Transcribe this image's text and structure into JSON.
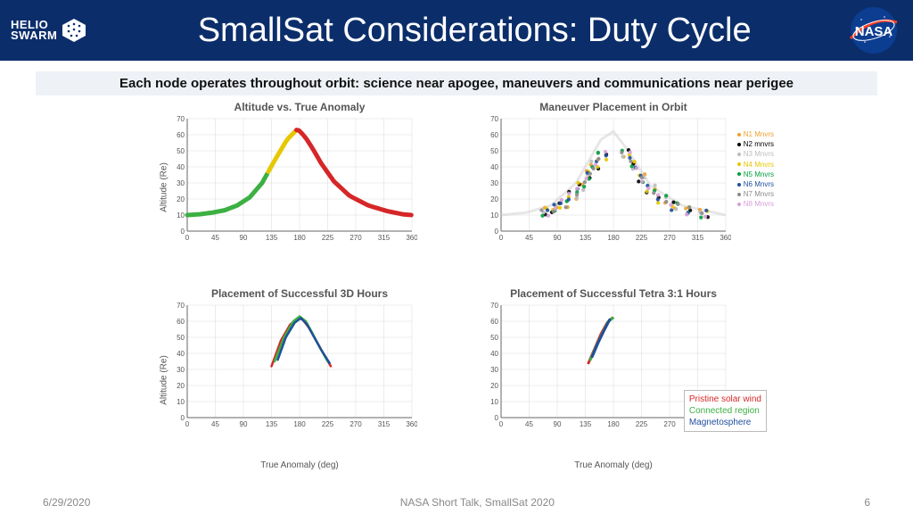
{
  "header": {
    "helio_line1": "HELIO",
    "helio_line2": "SWARM",
    "title": "SmallSat Considerations: Duty Cycle",
    "nasa_text": "NASA",
    "nasa_blue": "#0b3d91",
    "nasa_red": "#fc3d21"
  },
  "subtitle": "Each node operates throughout orbit: science near apogee, maneuvers and communications near perigee",
  "axis": {
    "x_ticks": [
      0,
      45,
      90,
      135,
      180,
      225,
      270,
      315,
      360
    ],
    "y_ticks": [
      0,
      10,
      20,
      30,
      40,
      50,
      60,
      70
    ],
    "ylim": [
      0,
      70
    ],
    "xlim": [
      0,
      360
    ],
    "ylabel": "Altitude (Re)",
    "xlabel": "True Anomaly (deg)",
    "grid_color": "#d9d9d9",
    "axis_color": "#666666",
    "tick_fontsize": 8
  },
  "charts": {
    "a": {
      "title": "Altitude vs. True Anomaly",
      "curve": [
        [
          0,
          10
        ],
        [
          20,
          10.5
        ],
        [
          40,
          11.5
        ],
        [
          60,
          13
        ],
        [
          80,
          16
        ],
        [
          100,
          21
        ],
        [
          120,
          30
        ],
        [
          140,
          44
        ],
        [
          160,
          57
        ],
        [
          175,
          63
        ],
        [
          180,
          62.5
        ],
        [
          190,
          58
        ],
        [
          200,
          52
        ],
        [
          215,
          42
        ],
        [
          235,
          31
        ],
        [
          260,
          22
        ],
        [
          290,
          16
        ],
        [
          320,
          12.5
        ],
        [
          345,
          10.5
        ],
        [
          360,
          10
        ]
      ],
      "color_breaks": [
        {
          "x_from": 0,
          "x_to": 130,
          "color": "#3cb043"
        },
        {
          "x_from": 130,
          "x_to": 175,
          "color": "#e6c700"
        },
        {
          "x_from": 175,
          "x_to": 360,
          "color": "#d62728"
        }
      ],
      "line_width": 5,
      "show_ylabel": true,
      "show_xlabel": false
    },
    "b": {
      "title": "Maneuver Placement in Orbit",
      "scatter_colors": [
        "#f0a030",
        "#000000",
        "#bdbdbd",
        "#e6c700",
        "#009e3c",
        "#1f4e9c",
        "#8a8a8a",
        "#d8a0d8"
      ],
      "scatter_labels": [
        "N1 Mnvrs",
        "N2 mnvrs",
        "N3 Mnvrs",
        "N4 Mnvrs",
        "N5 Mnvrs",
        "N6 Mnvrs",
        "N7 Mnvrs",
        "N8 Mnvrs"
      ],
      "scatter_clusters": [
        {
          "x": 70,
          "y": 12
        },
        {
          "x": 85,
          "y": 14
        },
        {
          "x": 100,
          "y": 17
        },
        {
          "x": 115,
          "y": 22
        },
        {
          "x": 128,
          "y": 28
        },
        {
          "x": 140,
          "y": 35
        },
        {
          "x": 150,
          "y": 41
        },
        {
          "x": 162,
          "y": 47
        },
        {
          "x": 200,
          "y": 48
        },
        {
          "x": 212,
          "y": 41
        },
        {
          "x": 225,
          "y": 33
        },
        {
          "x": 240,
          "y": 26
        },
        {
          "x": 258,
          "y": 20
        },
        {
          "x": 278,
          "y": 15.5
        },
        {
          "x": 300,
          "y": 12.5
        },
        {
          "x": 325,
          "y": 11
        }
      ],
      "backdrop_curve": [
        [
          0,
          10
        ],
        [
          40,
          11.5
        ],
        [
          80,
          16
        ],
        [
          120,
          30
        ],
        [
          160,
          57
        ],
        [
          180,
          62
        ],
        [
          200,
          52
        ],
        [
          240,
          28
        ],
        [
          290,
          16
        ],
        [
          360,
          10
        ]
      ],
      "backdrop_color": "#cfcfcf",
      "marker_size": 3,
      "show_ylabel": false,
      "show_xlabel": false
    },
    "c": {
      "title": "Placement of Successful 3D Hours",
      "lines": [
        {
          "color": "#d62728",
          "pts": [
            [
              135,
              32
            ],
            [
              150,
              48
            ],
            [
              165,
              58
            ],
            [
              178,
              62
            ],
            [
              185,
              61
            ],
            [
              195,
              56
            ],
            [
              205,
              49
            ],
            [
              218,
              40
            ],
            [
              230,
              32
            ]
          ]
        },
        {
          "color": "#3cb043",
          "pts": [
            [
              140,
              35
            ],
            [
              155,
              50
            ],
            [
              170,
              60
            ],
            [
              180,
              63
            ],
            [
              190,
              60
            ],
            [
              200,
              53
            ],
            [
              212,
              44
            ],
            [
              225,
              35
            ]
          ]
        },
        {
          "color": "#1f4e9c",
          "pts": [
            [
              145,
              36
            ],
            [
              158,
              50
            ],
            [
              172,
              59
            ],
            [
              182,
              62
            ],
            [
              192,
              58
            ],
            [
              202,
              51
            ],
            [
              215,
              42
            ],
            [
              228,
              34
            ]
          ]
        }
      ],
      "line_width": 2.5,
      "show_ylabel": true,
      "show_xlabel": true
    },
    "d": {
      "title": "Placement of Successful Tetra 3:1 Hours",
      "lines": [
        {
          "color": "#d62728",
          "pts": [
            [
              140,
              34
            ],
            [
              150,
              43
            ],
            [
              160,
              52
            ],
            [
              170,
              59
            ],
            [
              178,
              62
            ]
          ]
        },
        {
          "color": "#3cb043",
          "pts": [
            [
              143,
              36
            ],
            [
              153,
              45
            ],
            [
              163,
              53
            ],
            [
              172,
              60
            ],
            [
              179,
              62
            ]
          ]
        },
        {
          "color": "#1f4e9c",
          "pts": [
            [
              146,
              38
            ],
            [
              156,
              47
            ],
            [
              166,
              55
            ],
            [
              174,
              61
            ]
          ]
        }
      ],
      "line_width": 3,
      "region_legend": [
        {
          "label": "Pristine solar wind",
          "color": "#d62728"
        },
        {
          "label": "Connected region",
          "color": "#3cb043"
        },
        {
          "label": "Magnetosphere",
          "color": "#1f4e9c"
        }
      ],
      "show_ylabel": false,
      "show_xlabel": true
    }
  },
  "footer": {
    "date": "6/29/2020",
    "center": "NASA Short Talk, SmallSat 2020",
    "page": "6"
  }
}
